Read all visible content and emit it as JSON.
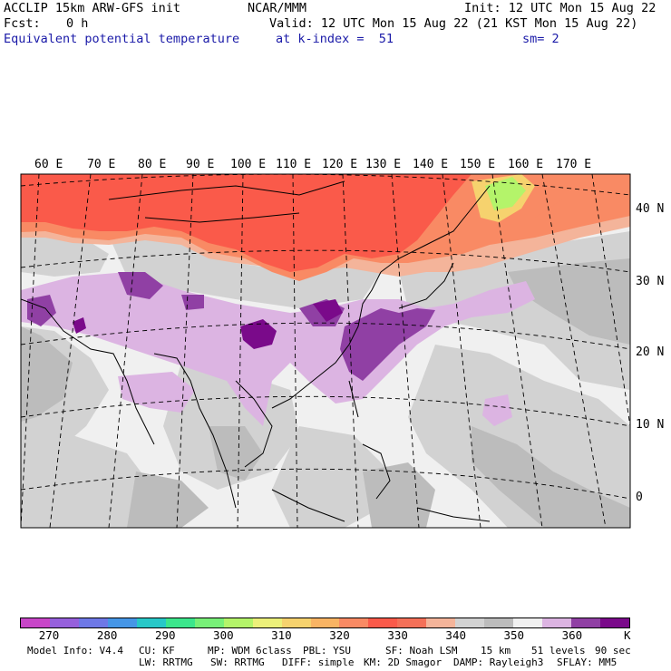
{
  "header": {
    "model": "ACCLIP 15km ARW-GFS init",
    "fcst_label": "Fcst:",
    "fcst_value": "0 h",
    "field": "Equivalent potential temperature",
    "center": "NCAR/MMM",
    "init": "Init: 12 UTC Mon 15 Aug 22",
    "valid": "Valid: 12 UTC Mon 15 Aug 22 (21 KST Mon 15 Aug 22)",
    "level": "at k-index =  51",
    "smooth": "sm= 2"
  },
  "map": {
    "lon_labels": [
      "60 E",
      "70 E",
      "80 E",
      "90 E",
      "100 E",
      "110 E",
      "120 E",
      "130 E",
      "140 E",
      "150 E",
      "160 E",
      "170 E"
    ],
    "lat_labels": [
      "40 N",
      "30 N",
      "20 N",
      "10 N",
      "0"
    ],
    "colors": {
      "ocean_bg": "#f0f0f0",
      "gray_light": "#d2d2d2",
      "gray_mid": "#bcbcbc",
      "warm_red": "#fa5a4a",
      "warm_orange": "#f98a64",
      "warm_peach": "#f4b49a",
      "lavender": "#dcb4e2",
      "purple_mid": "#9040a4",
      "purple_dark": "#7a0a8a",
      "green_yellow": "#b4f46a"
    }
  },
  "colorbar": {
    "colors": [
      "#c846c8",
      "#9660dc",
      "#6e78e6",
      "#4696e6",
      "#28c8c8",
      "#3ce68c",
      "#78f078",
      "#b4f46a",
      "#ecf07a",
      "#f6d26e",
      "#f9b464",
      "#f98a64",
      "#fa5a4a",
      "#f47058",
      "#f4b49a",
      "#d2d2d2",
      "#bcbcbc",
      "#f0f0f0",
      "#dcb4e2",
      "#9040a4",
      "#7a0a8a"
    ],
    "labels": [
      "270",
      "280",
      "290",
      "300",
      "310",
      "320",
      "330",
      "340",
      "350",
      "360"
    ],
    "unit": "K"
  },
  "footer": {
    "row1": [
      "Model Info: V4.4",
      "CU: KF",
      "MP: WDM 6class",
      "PBL: YSU",
      "SF: Noah LSM",
      "15 km",
      "51 levels",
      "90 sec"
    ],
    "row2": [
      "LW: RRTMG",
      "SW: RRTMG",
      "DIFF: simple",
      "KM: 2D Smagor",
      "DAMP: Rayleigh3",
      "SFLAY: MM5"
    ]
  }
}
